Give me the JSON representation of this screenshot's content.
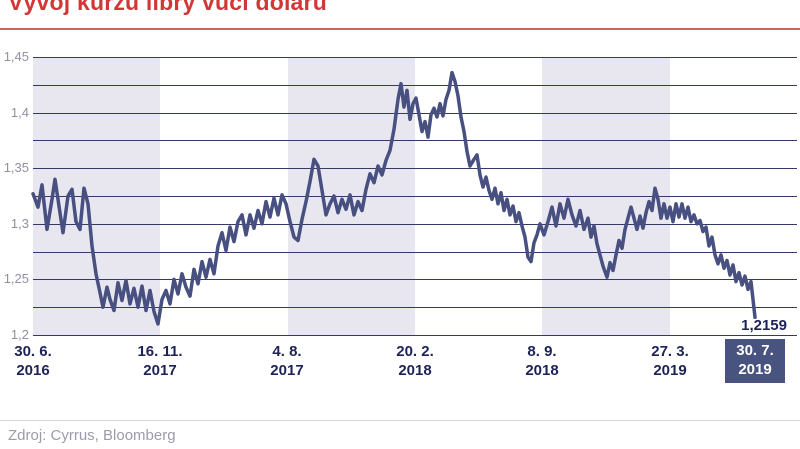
{
  "title": "Vývoj kurzu libry vůči dolaru",
  "source": "Zdroj: Cyrrus, Bloomberg",
  "colors": {
    "title": "#d23737",
    "title_rule": "#cf625c",
    "band": "#e8e6ee",
    "grid": "#363968",
    "line": "#475080",
    "ytick_text": "#8f8fa5",
    "xtick_text": "#1e2357",
    "highlight_bg": "#49537f",
    "highlight_text": "#ffffff",
    "value_label": "#1e2357",
    "bottom_rule": "#d6d6d9",
    "source_text": "#9b9baa"
  },
  "chart_data": {
    "type": "line",
    "title": "Vývoj kurzu libry vůči dolaru",
    "ylim": [
      1.2,
      1.45
    ],
    "grid_step": 0.025,
    "grid": true,
    "legend": false,
    "yticks": [
      {
        "v": 1.45,
        "label": "1,45"
      },
      {
        "v": 1.4,
        "label": "1,4"
      },
      {
        "v": 1.35,
        "label": "1,35"
      },
      {
        "v": 1.3,
        "label": "1,3"
      },
      {
        "v": 1.25,
        "label": "1,25"
      },
      {
        "v": 1.2,
        "label": "1,2"
      }
    ],
    "xticks": [
      {
        "pos": 0.0,
        "line1": "30. 6.",
        "line2": "2016",
        "highlight": false
      },
      {
        "pos": 0.1759,
        "line1": "16. 11.",
        "line2": "2017",
        "highlight": false
      },
      {
        "pos": 0.3518,
        "line1": "4. 8.",
        "line2": "2017",
        "highlight": false
      },
      {
        "pos": 0.5291,
        "line1": "20. 2.",
        "line2": "2018",
        "highlight": false
      },
      {
        "pos": 0.705,
        "line1": "8. 9.",
        "line2": "2018",
        "highlight": false
      },
      {
        "pos": 0.8823,
        "line1": "27. 3.",
        "line2": "2019",
        "highlight": false
      },
      {
        "pos": 1.0,
        "line1": "30. 7.",
        "line2": "2019",
        "highlight": true
      }
    ],
    "last_value_label": "1,2159",
    "last_value": 1.2159,
    "series": [
      {
        "points": [
          [
            0.0,
            1.327
          ],
          [
            0.0069,
            1.315
          ],
          [
            0.0125,
            1.335
          ],
          [
            0.0194,
            1.295
          ],
          [
            0.0263,
            1.322
          ],
          [
            0.0305,
            1.34
          ],
          [
            0.0374,
            1.31
          ],
          [
            0.0416,
            1.292
          ],
          [
            0.0485,
            1.325
          ],
          [
            0.054,
            1.331
          ],
          [
            0.0596,
            1.302
          ],
          [
            0.0651,
            1.295
          ],
          [
            0.0706,
            1.332
          ],
          [
            0.0762,
            1.318
          ],
          [
            0.0817,
            1.28
          ],
          [
            0.0873,
            1.255
          ],
          [
            0.0928,
            1.238
          ],
          [
            0.097,
            1.225
          ],
          [
            0.1025,
            1.243
          ],
          [
            0.1066,
            1.232
          ],
          [
            0.1122,
            1.222
          ],
          [
            0.1177,
            1.247
          ],
          [
            0.1233,
            1.231
          ],
          [
            0.1288,
            1.249
          ],
          [
            0.1343,
            1.228
          ],
          [
            0.1399,
            1.242
          ],
          [
            0.1454,
            1.225
          ],
          [
            0.151,
            1.244
          ],
          [
            0.1565,
            1.222
          ],
          [
            0.162,
            1.24
          ],
          [
            0.1676,
            1.221
          ],
          [
            0.1731,
            1.21
          ],
          [
            0.1787,
            1.232
          ],
          [
            0.1842,
            1.24
          ],
          [
            0.1897,
            1.228
          ],
          [
            0.1953,
            1.25
          ],
          [
            0.2008,
            1.237
          ],
          [
            0.2064,
            1.255
          ],
          [
            0.2119,
            1.243
          ],
          [
            0.2175,
            1.235
          ],
          [
            0.223,
            1.259
          ],
          [
            0.2285,
            1.246
          ],
          [
            0.2341,
            1.266
          ],
          [
            0.2396,
            1.252
          ],
          [
            0.2452,
            1.268
          ],
          [
            0.2507,
            1.255
          ],
          [
            0.2562,
            1.28
          ],
          [
            0.2618,
            1.292
          ],
          [
            0.2673,
            1.276
          ],
          [
            0.2729,
            1.297
          ],
          [
            0.2784,
            1.284
          ],
          [
            0.2839,
            1.302
          ],
          [
            0.2895,
            1.308
          ],
          [
            0.295,
            1.29
          ],
          [
            0.3006,
            1.308
          ],
          [
            0.3061,
            1.296
          ],
          [
            0.3116,
            1.312
          ],
          [
            0.3172,
            1.3
          ],
          [
            0.3227,
            1.32
          ],
          [
            0.3283,
            1.306
          ],
          [
            0.3338,
            1.323
          ],
          [
            0.3393,
            1.308
          ],
          [
            0.3449,
            1.326
          ],
          [
            0.3504,
            1.318
          ],
          [
            0.356,
            1.302
          ],
          [
            0.3615,
            1.288
          ],
          [
            0.367,
            1.285
          ],
          [
            0.3726,
            1.304
          ],
          [
            0.3781,
            1.32
          ],
          [
            0.3837,
            1.338
          ],
          [
            0.3892,
            1.358
          ],
          [
            0.3947,
            1.352
          ],
          [
            0.4003,
            1.33
          ],
          [
            0.4058,
            1.308
          ],
          [
            0.4114,
            1.318
          ],
          [
            0.4169,
            1.325
          ],
          [
            0.4224,
            1.31
          ],
          [
            0.428,
            1.322
          ],
          [
            0.4335,
            1.313
          ],
          [
            0.4391,
            1.326
          ],
          [
            0.4446,
            1.308
          ],
          [
            0.4501,
            1.32
          ],
          [
            0.4557,
            1.312
          ],
          [
            0.4612,
            1.331
          ],
          [
            0.4668,
            1.345
          ],
          [
            0.4723,
            1.337
          ],
          [
            0.4778,
            1.352
          ],
          [
            0.4834,
            1.344
          ],
          [
            0.4889,
            1.357
          ],
          [
            0.4945,
            1.366
          ],
          [
            0.5,
            1.385
          ],
          [
            0.5055,
            1.412
          ],
          [
            0.5097,
            1.426
          ],
          [
            0.5139,
            1.405
          ],
          [
            0.518,
            1.42
          ],
          [
            0.5222,
            1.394
          ],
          [
            0.5263,
            1.408
          ],
          [
            0.5305,
            1.413
          ],
          [
            0.5346,
            1.398
          ],
          [
            0.5388,
            1.383
          ],
          [
            0.5429,
            1.392
          ],
          [
            0.5471,
            1.378
          ],
          [
            0.5512,
            1.398
          ],
          [
            0.5554,
            1.404
          ],
          [
            0.5596,
            1.396
          ],
          [
            0.5637,
            1.408
          ],
          [
            0.5679,
            1.397
          ],
          [
            0.572,
            1.412
          ],
          [
            0.5762,
            1.42
          ],
          [
            0.5803,
            1.436
          ],
          [
            0.5845,
            1.428
          ],
          [
            0.5886,
            1.415
          ],
          [
            0.5928,
            1.396
          ],
          [
            0.5969,
            1.383
          ],
          [
            0.6011,
            1.365
          ],
          [
            0.6053,
            1.352
          ],
          [
            0.6108,
            1.358
          ],
          [
            0.615,
            1.362
          ],
          [
            0.6191,
            1.344
          ],
          [
            0.6233,
            1.333
          ],
          [
            0.6274,
            1.342
          ],
          [
            0.6316,
            1.33
          ],
          [
            0.6357,
            1.322
          ],
          [
            0.6399,
            1.332
          ],
          [
            0.644,
            1.318
          ],
          [
            0.6482,
            1.328
          ],
          [
            0.6524,
            1.312
          ],
          [
            0.6565,
            1.322
          ],
          [
            0.6607,
            1.308
          ],
          [
            0.6648,
            1.316
          ],
          [
            0.669,
            1.302
          ],
          [
            0.6731,
            1.31
          ],
          [
            0.6773,
            1.298
          ],
          [
            0.6814,
            1.288
          ],
          [
            0.6856,
            1.27
          ],
          [
            0.6898,
            1.266
          ],
          [
            0.6939,
            1.283
          ],
          [
            0.6981,
            1.29
          ],
          [
            0.7022,
            1.3
          ],
          [
            0.7078,
            1.29
          ],
          [
            0.7133,
            1.302
          ],
          [
            0.7188,
            1.315
          ],
          [
            0.7244,
            1.298
          ],
          [
            0.7299,
            1.318
          ],
          [
            0.7355,
            1.305
          ],
          [
            0.741,
            1.322
          ],
          [
            0.7465,
            1.308
          ],
          [
            0.7521,
            1.298
          ],
          [
            0.7576,
            1.312
          ],
          [
            0.7632,
            1.295
          ],
          [
            0.7687,
            1.305
          ],
          [
            0.7729,
            1.288
          ],
          [
            0.777,
            1.298
          ],
          [
            0.7812,
            1.282
          ],
          [
            0.7853,
            1.272
          ],
          [
            0.7895,
            1.262
          ],
          [
            0.795,
            1.252
          ],
          [
            0.7992,
            1.265
          ],
          [
            0.8033,
            1.258
          ],
          [
            0.8075,
            1.272
          ],
          [
            0.8116,
            1.285
          ],
          [
            0.8158,
            1.278
          ],
          [
            0.8199,
            1.295
          ],
          [
            0.8241,
            1.305
          ],
          [
            0.8283,
            1.315
          ],
          [
            0.8324,
            1.305
          ],
          [
            0.8366,
            1.295
          ],
          [
            0.8407,
            1.307
          ],
          [
            0.8449,
            1.296
          ],
          [
            0.849,
            1.31
          ],
          [
            0.8532,
            1.32
          ],
          [
            0.8573,
            1.312
          ],
          [
            0.8615,
            1.332
          ],
          [
            0.8656,
            1.322
          ],
          [
            0.8698,
            1.305
          ],
          [
            0.874,
            1.318
          ],
          [
            0.8781,
            1.305
          ],
          [
            0.8823,
            1.315
          ],
          [
            0.8864,
            1.302
          ],
          [
            0.8906,
            1.318
          ],
          [
            0.8947,
            1.306
          ],
          [
            0.8989,
            1.318
          ],
          [
            0.903,
            1.305
          ],
          [
            0.9072,
            1.315
          ],
          [
            0.9114,
            1.302
          ],
          [
            0.9155,
            1.308
          ],
          [
            0.9197,
            1.3
          ],
          [
            0.9238,
            1.303
          ],
          [
            0.928,
            1.293
          ],
          [
            0.9321,
            1.297
          ],
          [
            0.9363,
            1.28
          ],
          [
            0.9404,
            1.288
          ],
          [
            0.9446,
            1.272
          ],
          [
            0.9488,
            1.264
          ],
          [
            0.9529,
            1.272
          ],
          [
            0.9571,
            1.26
          ],
          [
            0.9612,
            1.267
          ],
          [
            0.9654,
            1.254
          ],
          [
            0.9695,
            1.263
          ],
          [
            0.9737,
            1.248
          ],
          [
            0.9778,
            1.256
          ],
          [
            0.982,
            1.245
          ],
          [
            0.9861,
            1.253
          ],
          [
            0.9903,
            1.241
          ],
          [
            0.9945,
            1.248
          ],
          [
            0.9972,
            1.232
          ],
          [
            1.0,
            1.2159
          ]
        ]
      }
    ]
  }
}
